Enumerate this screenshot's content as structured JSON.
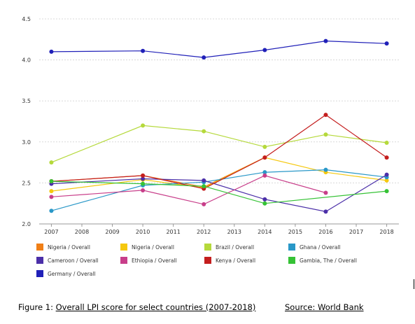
{
  "chart_data": {
    "type": "line",
    "x": [
      2007,
      2010,
      2012,
      2014,
      2016,
      2018
    ],
    "xticks": [
      "2007",
      "2008",
      "2009",
      "2010",
      "2011",
      "2012",
      "2013",
      "2014",
      "2015",
      "2016",
      "2017",
      "2018"
    ],
    "yticks": [
      "2.0",
      "2.5",
      "3.0",
      "3.5",
      "4.0",
      "4.5"
    ],
    "ylim": [
      2.0,
      4.5
    ],
    "grid": true,
    "legend_position": "bottom",
    "series": [
      {
        "name": "Nigeria / Overall",
        "color": "#f07f17",
        "values": [
          2.52,
          2.59,
          2.45,
          2.81,
          null,
          null
        ]
      },
      {
        "name": "Nigeria / Overall",
        "color": "#f5c80e",
        "values": [
          2.4,
          2.54,
          2.44,
          2.81,
          2.63,
          2.53
        ]
      },
      {
        "name": "Brazil / Overall",
        "color": "#b5d93b",
        "values": [
          2.75,
          3.2,
          3.13,
          2.94,
          3.09,
          2.99
        ]
      },
      {
        "name": "Ghana / Overall",
        "color": "#2a98c8",
        "values": [
          2.16,
          2.47,
          2.51,
          2.63,
          2.66,
          2.57
        ]
      },
      {
        "name": "Cameroon / Overall",
        "color": "#4b2fa8",
        "values": [
          2.49,
          2.55,
          2.53,
          2.3,
          2.15,
          2.6
        ]
      },
      {
        "name": "Ethiopia / Overall",
        "color": "#c83e8a",
        "values": [
          2.33,
          2.41,
          2.24,
          2.59,
          2.38,
          null
        ]
      },
      {
        "name": "Kenya / Overall",
        "color": "#c41e1e",
        "values": [
          2.52,
          2.59,
          2.43,
          2.81,
          3.33,
          2.81
        ]
      },
      {
        "name": "Gambia, The / Overall",
        "color": "#35c235",
        "values": [
          2.52,
          2.49,
          2.46,
          2.25,
          null,
          2.4
        ]
      },
      {
        "name": "Germany / Overall",
        "color": "#2020b8",
        "values": [
          4.1,
          4.11,
          4.03,
          4.12,
          4.23,
          4.2
        ]
      }
    ]
  },
  "caption": {
    "prefix": "Figure 1: ",
    "title": "Overall LPI score for select countries (2007-2018)",
    "source": "Source: World Bank"
  }
}
